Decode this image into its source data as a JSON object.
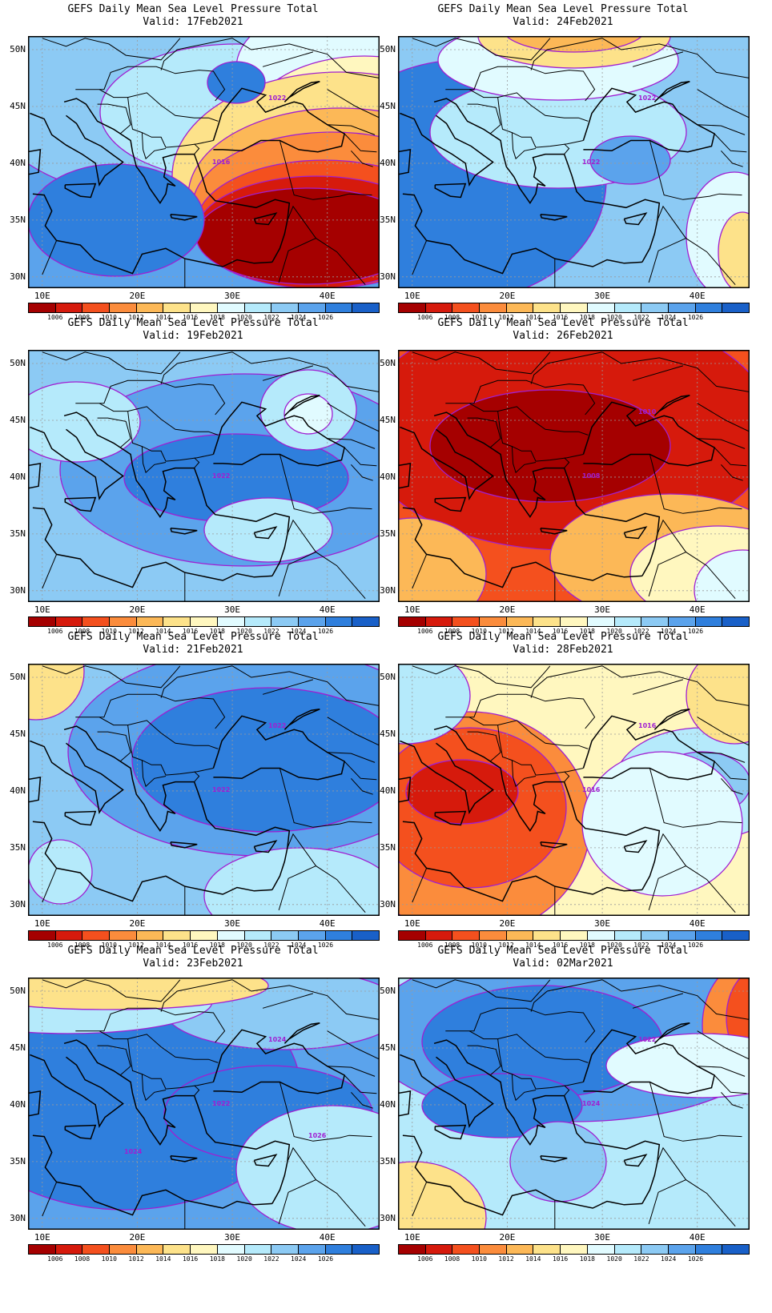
{
  "panel_title": "GEFS Daily Mean Sea Level Pressure Total",
  "panels": [
    {
      "valid": "Valid: 17Feb2021",
      "scheme": "a",
      "contour_labels": [
        "1016",
        "1022"
      ]
    },
    {
      "valid": "Valid: 24Feb2021",
      "scheme": "e",
      "contour_labels": [
        "1022",
        "1022"
      ]
    },
    {
      "valid": "Valid: 19Feb2021",
      "scheme": "b",
      "contour_labels": [
        "1022"
      ]
    },
    {
      "valid": "Valid: 26Feb2021",
      "scheme": "f",
      "contour_labels": [
        "1008",
        "1010"
      ]
    },
    {
      "valid": "Valid: 21Feb2021",
      "scheme": "c",
      "contour_labels": [
        "1022",
        "1022"
      ]
    },
    {
      "valid": "Valid: 28Feb2021",
      "scheme": "g",
      "contour_labels": [
        "1016",
        "1016"
      ]
    },
    {
      "valid": "Valid: 23Feb2021",
      "scheme": "d",
      "contour_labels": [
        "1022",
        "1024",
        "1024",
        "1026"
      ]
    },
    {
      "valid": "Valid: 02Mar2021",
      "scheme": "h",
      "contour_labels": [
        "1024",
        "1022"
      ]
    }
  ],
  "lat_labels": [
    "50N",
    "45N",
    "40N",
    "35N",
    "30N"
  ],
  "lon_labels": [
    "10E",
    "20E",
    "30E",
    "40E"
  ],
  "colorbar": {
    "labels": [
      "1006",
      "1008",
      "1010",
      "1012",
      "1014",
      "1016",
      "1018",
      "1020",
      "1022",
      "1024",
      "1026"
    ],
    "colors": [
      "#a50000",
      "#d61a0c",
      "#f4501e",
      "#fb8c3c",
      "#fcb857",
      "#fde28a",
      "#fff7bf",
      "#e1fbff",
      "#b5eafb",
      "#8ccaf4",
      "#5ba3ec",
      "#2f7fdd",
      "#1960c8"
    ]
  },
  "map_colors": {
    "land_outline": "#000000",
    "contour": "#a01ed2",
    "grid": "#9a9a9a"
  }
}
